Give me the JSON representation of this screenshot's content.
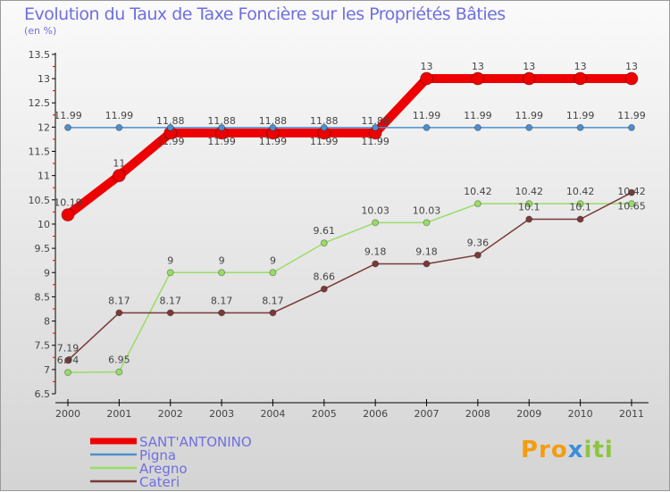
{
  "chart_data": {
    "type": "line",
    "title": "Evolution du Taux de Taxe Foncière sur les Propriétés Bâties",
    "ylabel": "(en %)",
    "ylim": [
      6.5,
      13.5
    ],
    "yticks": [
      "6.5",
      "7",
      "7.5",
      "8",
      "8.5",
      "9",
      "9.5",
      "10",
      "10.5",
      "11",
      "11.5",
      "12",
      "12.5",
      "13",
      "13.5"
    ],
    "x": [
      "2000",
      "2001",
      "2002",
      "2003",
      "2004",
      "2005",
      "2006",
      "2007",
      "2008",
      "2009",
      "2010",
      "2011"
    ],
    "series": [
      {
        "name": "SANT'ANTONINO",
        "color": "#ee0000",
        "values": [
          10.19,
          11,
          11.88,
          11.88,
          11.88,
          11.88,
          11.88,
          13,
          13,
          13,
          13,
          13
        ]
      },
      {
        "name": "Pigna",
        "color": "#4d8fcc",
        "values": [
          11.99,
          11.99,
          11.99,
          11.99,
          11.99,
          11.99,
          11.99,
          11.99,
          11.99,
          11.99,
          11.99,
          11.99
        ]
      },
      {
        "name": "Aregno",
        "color": "#99dd66",
        "values": [
          6.94,
          6.95,
          9,
          9,
          9,
          9.61,
          10.03,
          10.03,
          10.42,
          10.42,
          10.42,
          10.42
        ]
      },
      {
        "name": "Cateri",
        "color": "#7a3a3a",
        "values": [
          7.19,
          8.17,
          8.17,
          8.17,
          8.17,
          8.66,
          9.18,
          9.18,
          9.36,
          10.1,
          10.1,
          10.65
        ]
      }
    ]
  },
  "logo": "Proxiti"
}
